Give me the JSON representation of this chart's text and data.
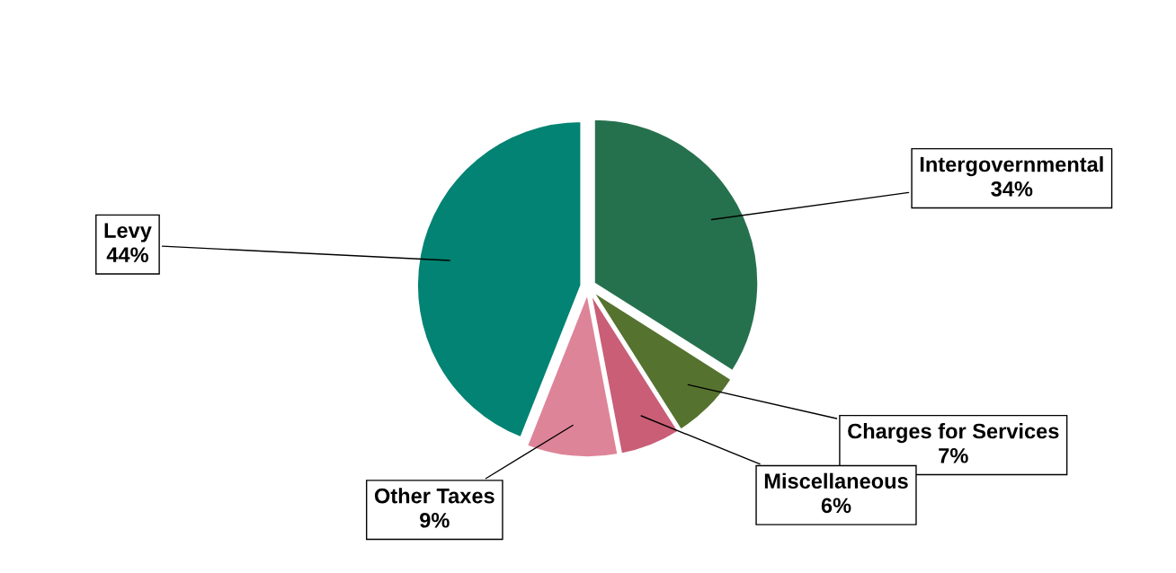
{
  "chart_data": {
    "type": "pie",
    "categories": [
      "Intergovernmental",
      "Charges for Services",
      "Miscellaneous",
      "Other Taxes",
      "Levy"
    ],
    "values": [
      34,
      7,
      6,
      9,
      44
    ],
    "value_labels": [
      "34%",
      "7%",
      "6%",
      "9%",
      "44%"
    ],
    "colors": [
      "#26714d",
      "#55722f",
      "#c95e76",
      "#de8498",
      "#028373"
    ],
    "legend": false
  }
}
